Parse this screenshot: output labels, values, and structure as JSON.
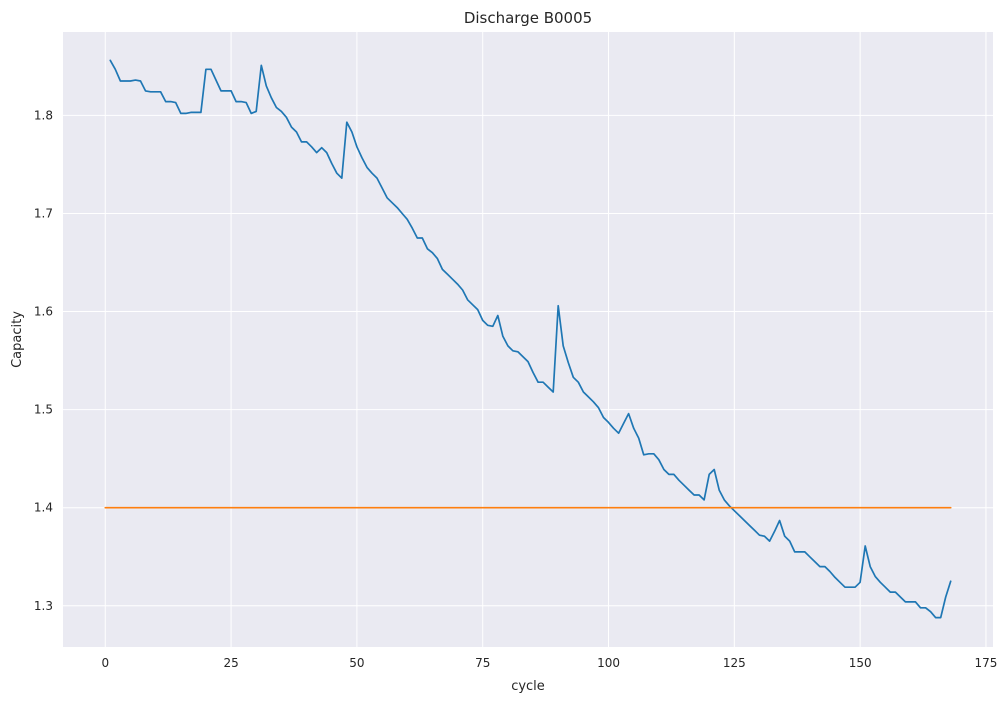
{
  "chart_data": {
    "type": "line",
    "title": "Discharge B0005",
    "xlabel": "cycle",
    "ylabel": "Capacity",
    "xlim": [
      -8.4,
      176.4
    ],
    "ylim": [
      1.258,
      1.885
    ],
    "x_ticks": [
      0,
      25,
      50,
      75,
      100,
      125,
      150,
      175
    ],
    "y_ticks": [
      1.3,
      1.4,
      1.5,
      1.6,
      1.7,
      1.8
    ],
    "grid": true,
    "background": "#eaeaf2",
    "series": [
      {
        "color": "#1f77b4",
        "x": [
          1,
          2,
          3,
          4,
          5,
          6,
          7,
          8,
          9,
          10,
          11,
          12,
          13,
          14,
          15,
          16,
          17,
          18,
          19,
          20,
          21,
          22,
          23,
          24,
          25,
          26,
          27,
          28,
          29,
          30,
          31,
          32,
          33,
          34,
          35,
          36,
          37,
          38,
          39,
          40,
          41,
          42,
          43,
          44,
          45,
          46,
          47,
          48,
          49,
          50,
          51,
          52,
          53,
          54,
          55,
          56,
          57,
          58,
          59,
          60,
          61,
          62,
          63,
          64,
          65,
          66,
          67,
          68,
          69,
          70,
          71,
          72,
          73,
          74,
          75,
          76,
          77,
          78,
          79,
          80,
          81,
          82,
          83,
          84,
          85,
          86,
          87,
          88,
          89,
          90,
          91,
          92,
          93,
          94,
          95,
          96,
          97,
          98,
          99,
          100,
          101,
          102,
          103,
          104,
          105,
          106,
          107,
          108,
          109,
          110,
          111,
          112,
          113,
          114,
          115,
          116,
          117,
          118,
          119,
          120,
          121,
          122,
          123,
          124,
          125,
          126,
          127,
          128,
          129,
          130,
          131,
          132,
          133,
          134,
          135,
          136,
          137,
          138,
          139,
          140,
          141,
          142,
          143,
          144,
          145,
          146,
          147,
          148,
          149,
          150,
          151,
          152,
          153,
          154,
          155,
          156,
          157,
          158,
          159,
          160,
          161,
          162,
          163,
          164,
          165,
          166,
          167,
          168
        ],
        "y": [
          1.856,
          1.847,
          1.835,
          1.835,
          1.835,
          1.836,
          1.835,
          1.825,
          1.824,
          1.824,
          1.824,
          1.814,
          1.814,
          1.813,
          1.802,
          1.802,
          1.803,
          1.803,
          1.803,
          1.847,
          1.847,
          1.836,
          1.825,
          1.825,
          1.825,
          1.814,
          1.814,
          1.813,
          1.802,
          1.804,
          1.851,
          1.83,
          1.818,
          1.808,
          1.804,
          1.798,
          1.788,
          1.783,
          1.773,
          1.773,
          1.768,
          1.762,
          1.767,
          1.762,
          1.751,
          1.741,
          1.736,
          1.793,
          1.783,
          1.768,
          1.757,
          1.747,
          1.741,
          1.736,
          1.726,
          1.716,
          1.711,
          1.706,
          1.7,
          1.694,
          1.685,
          1.675,
          1.675,
          1.664,
          1.66,
          1.654,
          1.643,
          1.638,
          1.633,
          1.628,
          1.622,
          1.612,
          1.607,
          1.602,
          1.591,
          1.586,
          1.585,
          1.596,
          1.575,
          1.565,
          1.56,
          1.559,
          1.554,
          1.549,
          1.538,
          1.528,
          1.528,
          1.523,
          1.518,
          1.606,
          1.565,
          1.548,
          1.533,
          1.528,
          1.518,
          1.513,
          1.508,
          1.502,
          1.492,
          1.487,
          1.481,
          1.476,
          1.486,
          1.496,
          1.481,
          1.471,
          1.454,
          1.455,
          1.455,
          1.449,
          1.439,
          1.434,
          1.434,
          1.428,
          1.423,
          1.418,
          1.413,
          1.413,
          1.408,
          1.434,
          1.439,
          1.418,
          1.408,
          1.402,
          1.397,
          1.392,
          1.387,
          1.382,
          1.377,
          1.372,
          1.371,
          1.366,
          1.376,
          1.387,
          1.371,
          1.366,
          1.355,
          1.355,
          1.355,
          1.35,
          1.345,
          1.34,
          1.34,
          1.335,
          1.329,
          1.324,
          1.319,
          1.319,
          1.319,
          1.324,
          1.361,
          1.34,
          1.33,
          1.324,
          1.319,
          1.314,
          1.314,
          1.309,
          1.304,
          1.304,
          1.304,
          1.298,
          1.298,
          1.294,
          1.288,
          1.288,
          1.309,
          1.325
        ]
      },
      {
        "color": "#ff7f0e",
        "x": [
          0,
          168
        ],
        "y": [
          1.4,
          1.4
        ]
      }
    ]
  }
}
